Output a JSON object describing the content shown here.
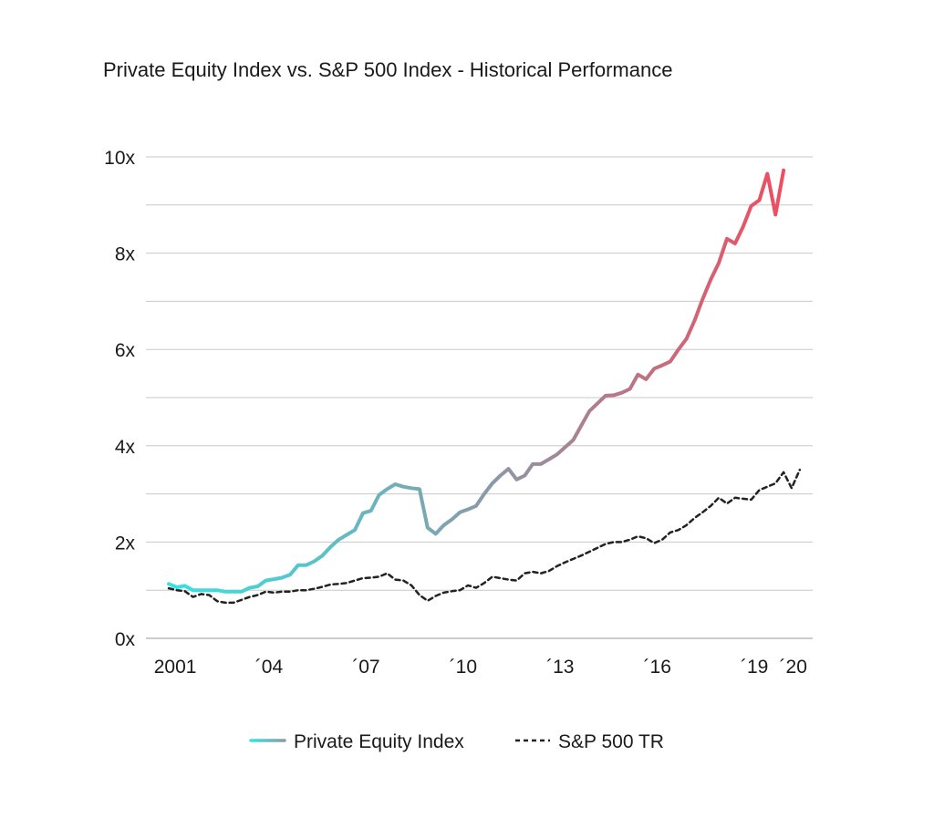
{
  "chart_data": {
    "type": "line",
    "title": "Private Equity Index vs. S&P 500 Index - Historical Performance",
    "xlabel": "",
    "ylabel": "",
    "xlim": [
      2001,
      2020.9
    ],
    "ylim": [
      0,
      10
    ],
    "y_ticks": [
      {
        "value": 0,
        "label": "0x"
      },
      {
        "value": 2,
        "label": "2x"
      },
      {
        "value": 4,
        "label": "4x"
      },
      {
        "value": 6,
        "label": "6x"
      },
      {
        "value": 8,
        "label": "8x"
      },
      {
        "value": 10,
        "label": "10x"
      }
    ],
    "x_ticks": [
      {
        "value": 2001.2,
        "label": "2001"
      },
      {
        "value": 2004.1,
        "label": "´04"
      },
      {
        "value": 2007.1,
        "label": "´07"
      },
      {
        "value": 2010.1,
        "label": "´10"
      },
      {
        "value": 2013.1,
        "label": "´13"
      },
      {
        "value": 2016.1,
        "label": "´16"
      },
      {
        "value": 2019.1,
        "label": "´19"
      },
      {
        "value": 2020.3,
        "label": "´20"
      }
    ],
    "grid": true,
    "legend_position": "bottom",
    "colors": {
      "pe_start": "#35e3e3",
      "pe_mid": "#8a9aa8",
      "pe_end": "#f7475a",
      "sp": "#222222",
      "grid": "#c8c8c8"
    },
    "series": [
      {
        "name": "Private Equity Index",
        "style": "gradient-solid",
        "points": [
          [
            2001.0,
            1.13
          ],
          [
            2001.25,
            1.06
          ],
          [
            2001.5,
            1.09
          ],
          [
            2001.75,
            1.0
          ],
          [
            2002.0,
            1.0
          ],
          [
            2002.25,
            1.0
          ],
          [
            2002.5,
            1.0
          ],
          [
            2002.75,
            0.97
          ],
          [
            2003.0,
            0.97
          ],
          [
            2003.25,
            0.97
          ],
          [
            2003.5,
            1.05
          ],
          [
            2003.75,
            1.08
          ],
          [
            2004.0,
            1.2
          ],
          [
            2004.25,
            1.23
          ],
          [
            2004.5,
            1.26
          ],
          [
            2004.75,
            1.32
          ],
          [
            2005.0,
            1.52
          ],
          [
            2005.25,
            1.52
          ],
          [
            2005.5,
            1.6
          ],
          [
            2005.75,
            1.72
          ],
          [
            2006.0,
            1.9
          ],
          [
            2006.25,
            2.05
          ],
          [
            2006.5,
            2.15
          ],
          [
            2006.75,
            2.25
          ],
          [
            2007.0,
            2.6
          ],
          [
            2007.25,
            2.65
          ],
          [
            2007.5,
            2.98
          ],
          [
            2007.75,
            3.1
          ],
          [
            2008.0,
            3.2
          ],
          [
            2008.25,
            3.15
          ],
          [
            2008.5,
            3.12
          ],
          [
            2008.75,
            3.1
          ],
          [
            2009.0,
            2.3
          ],
          [
            2009.25,
            2.17
          ],
          [
            2009.5,
            2.35
          ],
          [
            2009.75,
            2.47
          ],
          [
            2010.0,
            2.62
          ],
          [
            2010.25,
            2.68
          ],
          [
            2010.5,
            2.75
          ],
          [
            2010.75,
            3.0
          ],
          [
            2011.0,
            3.22
          ],
          [
            2011.25,
            3.38
          ],
          [
            2011.5,
            3.52
          ],
          [
            2011.75,
            3.3
          ],
          [
            2012.0,
            3.38
          ],
          [
            2012.25,
            3.62
          ],
          [
            2012.5,
            3.62
          ],
          [
            2012.75,
            3.72
          ],
          [
            2013.0,
            3.82
          ],
          [
            2013.25,
            3.97
          ],
          [
            2013.5,
            4.12
          ],
          [
            2013.75,
            4.42
          ],
          [
            2014.0,
            4.72
          ],
          [
            2014.25,
            4.88
          ],
          [
            2014.5,
            5.04
          ],
          [
            2014.75,
            5.05
          ],
          [
            2015.0,
            5.1
          ],
          [
            2015.25,
            5.18
          ],
          [
            2015.5,
            5.48
          ],
          [
            2015.75,
            5.38
          ],
          [
            2016.0,
            5.6
          ],
          [
            2016.25,
            5.67
          ],
          [
            2016.5,
            5.75
          ],
          [
            2016.75,
            6.0
          ],
          [
            2017.0,
            6.22
          ],
          [
            2017.25,
            6.6
          ],
          [
            2017.5,
            7.05
          ],
          [
            2017.75,
            7.45
          ],
          [
            2018.0,
            7.8
          ],
          [
            2018.25,
            8.3
          ],
          [
            2018.5,
            8.2
          ],
          [
            2018.75,
            8.55
          ],
          [
            2019.0,
            8.98
          ],
          [
            2019.25,
            9.1
          ],
          [
            2019.5,
            9.65
          ],
          [
            2019.75,
            8.8
          ],
          [
            2020.0,
            9.72
          ]
        ]
      },
      {
        "name": "S&P 500 TR",
        "style": "dashed",
        "points": [
          [
            2001.0,
            1.04
          ],
          [
            2001.25,
            1.0
          ],
          [
            2001.5,
            0.98
          ],
          [
            2001.75,
            0.86
          ],
          [
            2002.0,
            0.92
          ],
          [
            2002.25,
            0.9
          ],
          [
            2002.5,
            0.77
          ],
          [
            2002.75,
            0.74
          ],
          [
            2003.0,
            0.74
          ],
          [
            2003.25,
            0.8
          ],
          [
            2003.5,
            0.86
          ],
          [
            2003.75,
            0.9
          ],
          [
            2004.0,
            0.97
          ],
          [
            2004.25,
            0.95
          ],
          [
            2004.5,
            0.97
          ],
          [
            2004.75,
            0.97
          ],
          [
            2005.0,
            1.0
          ],
          [
            2005.25,
            1.0
          ],
          [
            2005.5,
            1.03
          ],
          [
            2005.75,
            1.07
          ],
          [
            2006.0,
            1.12
          ],
          [
            2006.25,
            1.13
          ],
          [
            2006.5,
            1.15
          ],
          [
            2006.75,
            1.2
          ],
          [
            2007.0,
            1.25
          ],
          [
            2007.25,
            1.26
          ],
          [
            2007.5,
            1.28
          ],
          [
            2007.75,
            1.35
          ],
          [
            2008.0,
            1.22
          ],
          [
            2008.25,
            1.2
          ],
          [
            2008.5,
            1.1
          ],
          [
            2008.75,
            0.9
          ],
          [
            2009.0,
            0.78
          ],
          [
            2009.25,
            0.88
          ],
          [
            2009.5,
            0.95
          ],
          [
            2009.75,
            0.98
          ],
          [
            2010.0,
            1.0
          ],
          [
            2010.25,
            1.1
          ],
          [
            2010.5,
            1.05
          ],
          [
            2010.75,
            1.15
          ],
          [
            2011.0,
            1.28
          ],
          [
            2011.25,
            1.25
          ],
          [
            2011.5,
            1.22
          ],
          [
            2011.75,
            1.2
          ],
          [
            2012.0,
            1.35
          ],
          [
            2012.25,
            1.38
          ],
          [
            2012.5,
            1.35
          ],
          [
            2012.75,
            1.4
          ],
          [
            2013.0,
            1.5
          ],
          [
            2013.25,
            1.58
          ],
          [
            2013.5,
            1.65
          ],
          [
            2013.75,
            1.72
          ],
          [
            2014.0,
            1.8
          ],
          [
            2014.25,
            1.88
          ],
          [
            2014.5,
            1.96
          ],
          [
            2014.75,
            2.0
          ],
          [
            2015.0,
            2.0
          ],
          [
            2015.25,
            2.05
          ],
          [
            2015.5,
            2.12
          ],
          [
            2015.75,
            2.08
          ],
          [
            2016.0,
            1.98
          ],
          [
            2016.25,
            2.05
          ],
          [
            2016.5,
            2.2
          ],
          [
            2016.75,
            2.25
          ],
          [
            2017.0,
            2.35
          ],
          [
            2017.25,
            2.5
          ],
          [
            2017.5,
            2.62
          ],
          [
            2017.75,
            2.75
          ],
          [
            2018.0,
            2.92
          ],
          [
            2018.25,
            2.8
          ],
          [
            2018.5,
            2.92
          ],
          [
            2018.75,
            2.9
          ],
          [
            2019.0,
            2.88
          ],
          [
            2019.25,
            3.08
          ],
          [
            2019.5,
            3.15
          ],
          [
            2019.75,
            3.22
          ],
          [
            2020.0,
            3.45
          ],
          [
            2020.25,
            3.12
          ],
          [
            2020.5,
            3.5
          ]
        ]
      }
    ]
  }
}
